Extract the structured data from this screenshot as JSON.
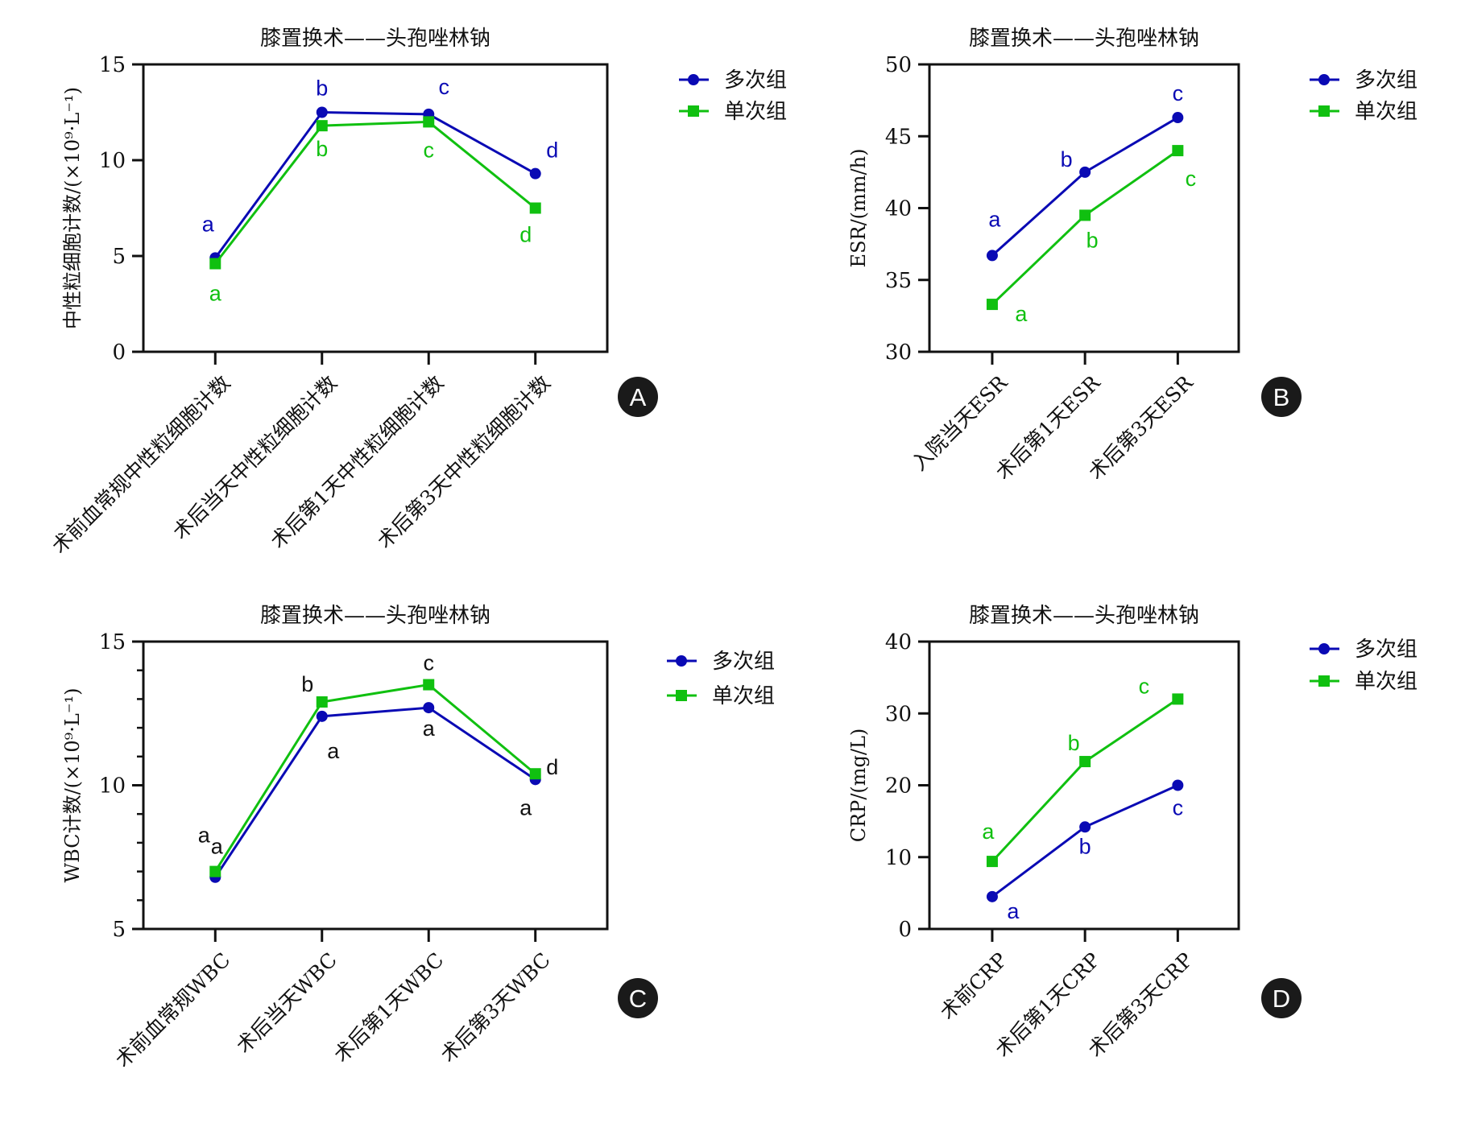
{
  "colors": {
    "multi": "#0a0ab4",
    "single": "#10c010",
    "axis": "#111111"
  },
  "chart_data": [
    {
      "id": "A",
      "panel_label": "A",
      "type": "line",
      "title": "膝置换术——头孢唑林钠",
      "ylabel": "中性粒细胞计数/(×10⁹·L⁻¹)",
      "ylim": [
        0,
        15
      ],
      "yticks": [
        0,
        5,
        10,
        15
      ],
      "minor_step": null,
      "categories": [
        "术前血常规中性粒细胞计数",
        "术后当天中性粒细胞计数",
        "术后第1天中性粒细胞计数",
        "术后第3天中性粒细胞计数"
      ],
      "legend_position": "right",
      "letter_color": "series",
      "series": [
        {
          "name": "多次组",
          "marker": "circle",
          "values": [
            4.9,
            12.5,
            12.4,
            9.3
          ],
          "letters": [
            "a",
            "b",
            "c",
            "d"
          ]
        },
        {
          "name": "单次组",
          "marker": "square",
          "values": [
            4.6,
            11.8,
            12.0,
            7.5
          ],
          "letters": [
            "a",
            "b",
            "c",
            "d"
          ]
        }
      ]
    },
    {
      "id": "B",
      "panel_label": "B",
      "type": "line",
      "title": "膝置换术——头孢唑林钠",
      "ylabel": "ESR/(mm/h)",
      "ylim": [
        30,
        50
      ],
      "yticks": [
        30,
        35,
        40,
        45,
        50
      ],
      "minor_step": null,
      "categories": [
        "入院当天ESR",
        "术后第1天ESR",
        "术后第3天ESR"
      ],
      "legend_position": "right",
      "letter_color": "series",
      "series": [
        {
          "name": "多次组",
          "marker": "circle",
          "values": [
            36.7,
            42.5,
            46.3
          ],
          "letters": [
            "a",
            "b",
            "c"
          ]
        },
        {
          "name": "单次组",
          "marker": "square",
          "values": [
            33.3,
            39.5,
            44.0
          ],
          "letters": [
            "a",
            "b",
            "c"
          ]
        }
      ]
    },
    {
      "id": "C",
      "panel_label": "C",
      "type": "line",
      "title": "膝置换术——头孢唑林钠",
      "ylabel": "WBC计数/(×10⁹·L⁻¹)",
      "ylim": [
        5,
        15
      ],
      "yticks": [
        5,
        10,
        15
      ],
      "minor_step": 1,
      "categories": [
        "术前血常规WBC",
        "术后当天WBC",
        "术后第1天WBC",
        "术后第3天WBC"
      ],
      "legend_position": "right",
      "letter_color": "black",
      "series": [
        {
          "name": "多次组",
          "marker": "circle",
          "values": [
            6.8,
            12.4,
            12.7,
            10.2
          ],
          "letters": [
            "a",
            "a",
            "a",
            "a"
          ]
        },
        {
          "name": "单次组",
          "marker": "square",
          "values": [
            7.0,
            12.9,
            13.5,
            10.4
          ],
          "letters": [
            "a",
            "b",
            "c",
            "d"
          ]
        }
      ]
    },
    {
      "id": "D",
      "panel_label": "D",
      "type": "line",
      "title": "膝置换术——头孢唑林钠",
      "ylabel": "CRP/(mg/L)",
      "ylim": [
        0,
        40
      ],
      "yticks": [
        0,
        10,
        20,
        30,
        40
      ],
      "minor_step": null,
      "categories": [
        "术前CRP",
        "术后第1天CRP",
        "术后第3天CRP"
      ],
      "legend_position": "right",
      "letter_color": "series",
      "series": [
        {
          "name": "多次组",
          "marker": "circle",
          "values": [
            4.5,
            14.2,
            20.0
          ],
          "letters": [
            "a",
            "b",
            "c"
          ]
        },
        {
          "name": "单次组",
          "marker": "square",
          "values": [
            9.4,
            23.3,
            32.0
          ],
          "letters": [
            "a",
            "b",
            "c"
          ]
        }
      ]
    }
  ]
}
